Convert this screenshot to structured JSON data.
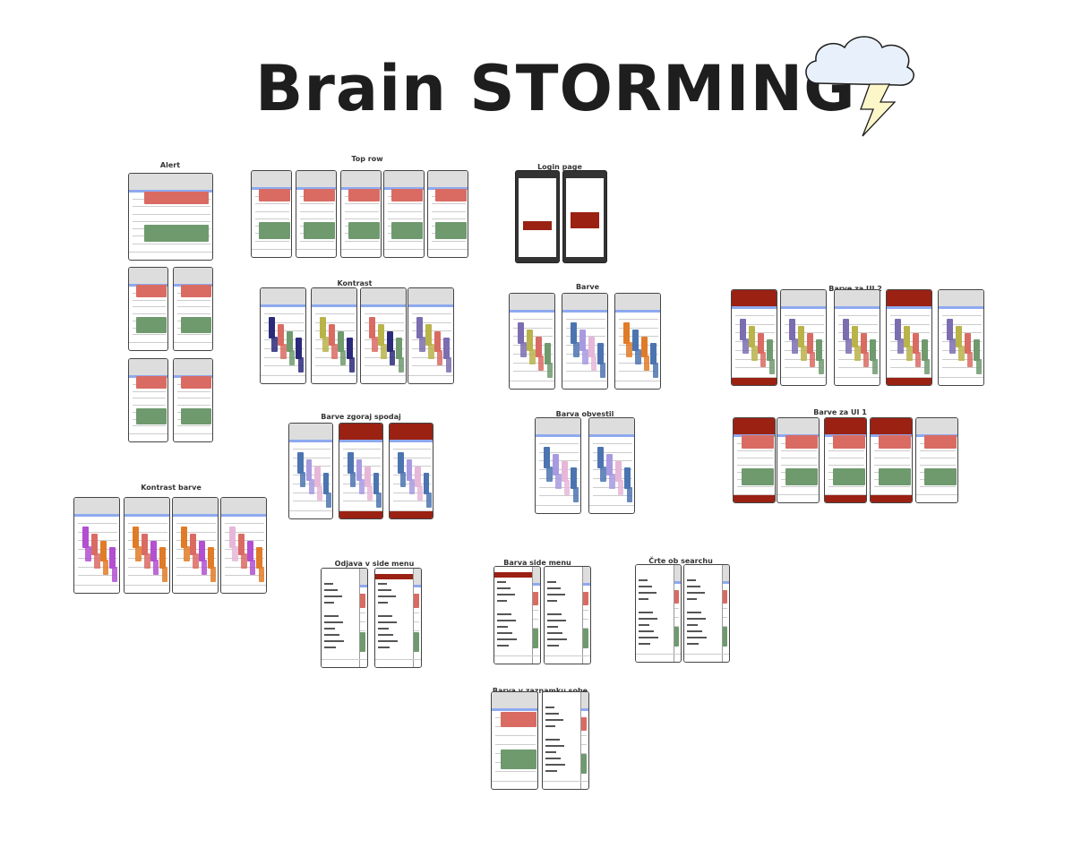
{
  "title": "Brain STORMING",
  "colors": {
    "red_card": "#d96b63",
    "green_card": "#6f9a6e",
    "dark_red": "#9b2113",
    "blue_strip": "#8ea9f0",
    "cloud": "#e8f0fb",
    "bolt": "#fdf6c8",
    "purple": "#7b6db0",
    "navy": "#2c2a7a",
    "olive": "#b9b34a",
    "orange": "#e07b27",
    "magenta": "#b34fd1",
    "steel_blue": "#4c74b0",
    "lavender": "#a89ae0",
    "pink": "#e6b7d8"
  },
  "icons": [
    "cloud-icon",
    "lightning-bolt-icon"
  ],
  "groups": [
    {
      "id": "alert",
      "label": "Alert"
    },
    {
      "id": "top-row",
      "label": "Top row"
    },
    {
      "id": "login-page",
      "label": "Login page"
    },
    {
      "id": "kontrast",
      "label": "Kontrast"
    },
    {
      "id": "barve",
      "label": "Barve"
    },
    {
      "id": "barve-za-ui-2",
      "label": "Barve za UI 2"
    },
    {
      "id": "barve-zgoraj-spodaj",
      "label": "Barve zgoraj spodaj"
    },
    {
      "id": "barva-obvestil",
      "label": "Barva obvestil"
    },
    {
      "id": "barve-za-ui-1",
      "label": "Barve za UI 1"
    },
    {
      "id": "kontrast-barve",
      "label": "Kontrast barve"
    },
    {
      "id": "odjava-v-side-menu",
      "label": "Odjava v side menu"
    },
    {
      "id": "barva-side-menu",
      "label": "Barva side menu"
    },
    {
      "id": "crte-ob-search",
      "label": "Črte ob searchu"
    },
    {
      "id": "barva-v-zaznamku-sobe",
      "label": "Barva v zaznamku sobe"
    }
  ]
}
